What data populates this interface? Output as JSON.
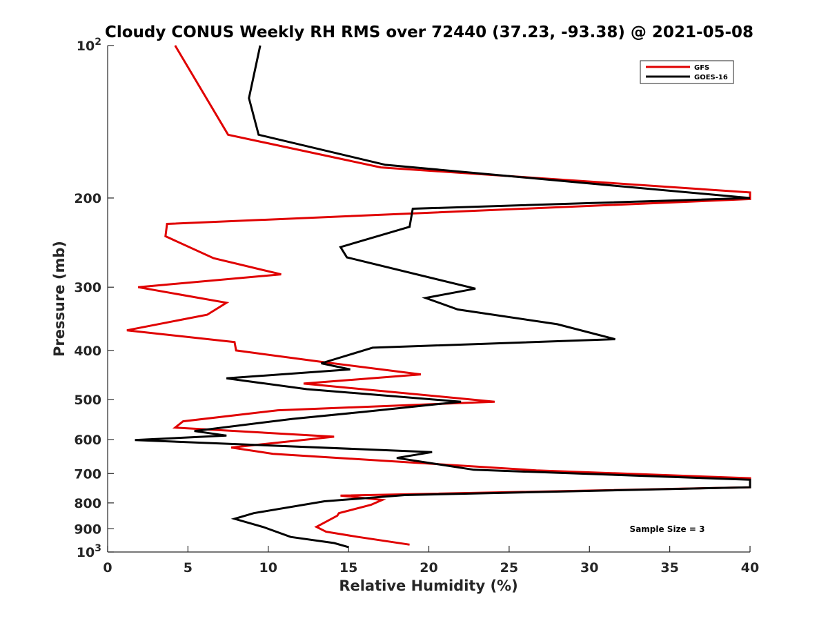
{
  "chart_data": {
    "type": "line",
    "title": "Cloudy CONUS Weekly RH RMS over 72440 (37.23, -93.38) @ 2021-05-08",
    "xlabel": "Relative Humidity (%)",
    "ylabel": "Pressure (mb)",
    "xlim": [
      0,
      40
    ],
    "ylim": [
      100,
      1000
    ],
    "y_scale": "log",
    "y_reversed": true,
    "grid": false,
    "legend_position": "top-right",
    "x_ticks": [
      "0",
      "5",
      "10",
      "15",
      "20",
      "25",
      "30",
      "35",
      "40"
    ],
    "x_tick_values": [
      0,
      5,
      10,
      15,
      20,
      25,
      30,
      35,
      40
    ],
    "y_ticks": [
      {
        "value": 100,
        "base": "10",
        "exp": "2"
      },
      {
        "value": 200,
        "label": "200"
      },
      {
        "value": 300,
        "label": "300"
      },
      {
        "value": 400,
        "label": "400"
      },
      {
        "value": 500,
        "label": "500"
      },
      {
        "value": 600,
        "label": "600"
      },
      {
        "value": 700,
        "label": "700"
      },
      {
        "value": 800,
        "label": "800"
      },
      {
        "value": 900,
        "label": "900"
      },
      {
        "value": 1000,
        "base": "10",
        "exp": "3"
      }
    ],
    "annotation": "Sample Size = 3",
    "series": [
      {
        "name": "GFS",
        "color": "#e00000",
        "points": [
          [
            4.2,
            100
          ],
          [
            7.5,
            150
          ],
          [
            17.0,
            174
          ],
          [
            40.0,
            195
          ],
          [
            40.0,
            201
          ],
          [
            3.7,
            225
          ],
          [
            3.6,
            238
          ],
          [
            6.6,
            263
          ],
          [
            10.8,
            283
          ],
          [
            1.9,
            300
          ],
          [
            7.4,
            322
          ],
          [
            6.2,
            340
          ],
          [
            1.2,
            365
          ],
          [
            7.9,
            385
          ],
          [
            8.0,
            400
          ],
          [
            13.5,
            422
          ],
          [
            19.5,
            446
          ],
          [
            12.2,
            465
          ],
          [
            24.1,
            505
          ],
          [
            10.6,
            525
          ],
          [
            4.7,
            552
          ],
          [
            4.2,
            568
          ],
          [
            14.1,
            592
          ],
          [
            7.7,
            622
          ],
          [
            10.3,
            640
          ],
          [
            26.7,
            690
          ],
          [
            40.0,
            715
          ],
          [
            40.0,
            745
          ],
          [
            14.5,
            774
          ],
          [
            17.1,
            789
          ],
          [
            16.4,
            807
          ],
          [
            14.4,
            838
          ],
          [
            14.3,
            848
          ],
          [
            13.0,
            892
          ],
          [
            13.6,
            912
          ],
          [
            15.6,
            934
          ],
          [
            18.8,
            967
          ]
        ]
      },
      {
        "name": "GOES-16",
        "color": "#000000",
        "points": [
          [
            9.5,
            100
          ],
          [
            8.8,
            127
          ],
          [
            9.4,
            150
          ],
          [
            17.3,
            172
          ],
          [
            40.0,
            200
          ],
          [
            19.0,
            210
          ],
          [
            18.8,
            228
          ],
          [
            14.5,
            250
          ],
          [
            14.9,
            262
          ],
          [
            22.9,
            302
          ],
          [
            19.8,
            315
          ],
          [
            21.8,
            332
          ],
          [
            28.0,
            355
          ],
          [
            31.6,
            380
          ],
          [
            16.5,
            395
          ],
          [
            13.3,
            424
          ],
          [
            15.1,
            436
          ],
          [
            7.4,
            454
          ],
          [
            12.4,
            477
          ],
          [
            22.0,
            505
          ],
          [
            15.9,
            529
          ],
          [
            11.5,
            546
          ],
          [
            5.4,
            577
          ],
          [
            7.4,
            589
          ],
          [
            1.7,
            601
          ],
          [
            20.2,
            635
          ],
          [
            18.0,
            652
          ],
          [
            22.8,
            688
          ],
          [
            40.0,
            720
          ],
          [
            40.0,
            745
          ],
          [
            18.5,
            772
          ],
          [
            13.5,
            794
          ],
          [
            9.1,
            838
          ],
          [
            7.9,
            860
          ],
          [
            9.7,
            893
          ],
          [
            11.4,
            934
          ],
          [
            14.1,
            960
          ],
          [
            15.0,
            978
          ]
        ]
      }
    ]
  }
}
